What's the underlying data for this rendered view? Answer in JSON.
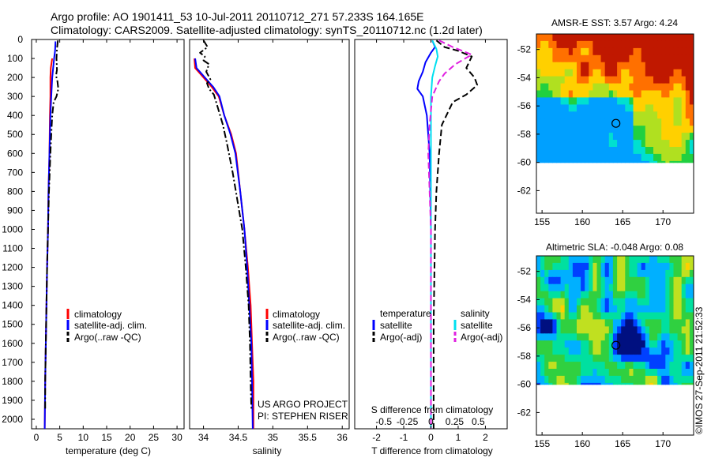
{
  "header": {
    "line1": "Argo profile: AO 1901411_53 10-Jul-2011 20110712_271 57.233S 164.165E",
    "line2": "Climatology: CARS2009. Satellite-adjusted climatology: synTS_20110712.nc (1.2d later)"
  },
  "credits": {
    "project": "US ARGO PROJECT",
    "pi": "PI: STEPHEN RISER",
    "stamp": "©IMOS 27-Sep-2011 21:52:33"
  },
  "colors": {
    "climatology": "#ff0000",
    "satellite": "#0000ff",
    "argo": "#000000",
    "sal_satellite": "#00e0f0",
    "sal_argo": "#e020e0"
  },
  "chart_data": [
    {
      "type": "line",
      "name": "temperature-profile",
      "xlabel": "temperature (deg C)",
      "ylabel": "",
      "xlim": [
        -1,
        31.5
      ],
      "ylim": [
        2050,
        0
      ],
      "xticks": [
        0,
        5,
        10,
        15,
        20,
        25,
        30
      ],
      "yticks": [
        0,
        100,
        200,
        300,
        400,
        500,
        600,
        700,
        800,
        900,
        1000,
        1100,
        1200,
        1300,
        1400,
        1500,
        1600,
        1700,
        1800,
        1900,
        2000
      ],
      "legend": {
        "position": "bottom-center",
        "labels": [
          "climatology",
          "satellite-adj. clim.",
          "Argo(..raw -QC)"
        ]
      },
      "series": [
        {
          "name": "climatology",
          "style": "solid",
          "color": "#ff0000",
          "points": [
            [
              3.4,
              100
            ],
            [
              3.1,
              150
            ],
            [
              3.0,
              200
            ],
            [
              3.0,
              300
            ],
            [
              2.9,
              400
            ],
            [
              2.8,
              600
            ],
            [
              2.6,
              800
            ],
            [
              2.5,
              1000
            ],
            [
              2.3,
              1200
            ],
            [
              2.1,
              1500
            ],
            [
              1.9,
              1800
            ],
            [
              1.8,
              2050
            ]
          ]
        },
        {
          "name": "satellite-adj. clim.",
          "style": "solid",
          "color": "#0000ff",
          "points": [
            [
              4.1,
              10
            ],
            [
              4.0,
              60
            ],
            [
              3.8,
              100
            ],
            [
              3.6,
              150
            ],
            [
              3.4,
              200
            ],
            [
              3.2,
              300
            ],
            [
              3.0,
              400
            ],
            [
              2.8,
              600
            ],
            [
              2.6,
              800
            ],
            [
              2.5,
              1000
            ],
            [
              2.3,
              1200
            ],
            [
              2.1,
              1500
            ],
            [
              1.9,
              1800
            ],
            [
              1.8,
              2050
            ]
          ]
        },
        {
          "name": "Argo(..raw -QC)",
          "style": "dashdot",
          "color": "#000000",
          "points": [
            [
              4.6,
              5
            ],
            [
              4.4,
              50
            ],
            [
              4.3,
              100
            ],
            [
              4.4,
              160
            ],
            [
              4.2,
              190
            ],
            [
              4.5,
              220
            ],
            [
              4.7,
              260
            ],
            [
              4.3,
              300
            ],
            [
              3.7,
              330
            ],
            [
              3.4,
              400
            ],
            [
              3.2,
              500
            ],
            [
              3.0,
              600
            ],
            [
              2.7,
              800
            ],
            [
              2.5,
              1000
            ],
            [
              2.3,
              1200
            ],
            [
              2.1,
              1500
            ],
            [
              1.9,
              1800
            ],
            [
              1.9,
              1950
            ]
          ]
        }
      ]
    },
    {
      "type": "line",
      "name": "salinity-profile",
      "xlabel": "salinity",
      "ylabel": "",
      "xlim": [
        33.8,
        36.1
      ],
      "ylim": [
        2050,
        0
      ],
      "xticks": [
        34,
        34.5,
        35,
        35.5,
        36
      ],
      "legend": {
        "position": "bottom-center",
        "labels": [
          "climatology",
          "satellite-adj. clim.",
          "Argo(..raw -QC)"
        ]
      },
      "series": [
        {
          "name": "climatology",
          "style": "solid",
          "color": "#ff0000",
          "points": [
            [
              33.87,
              100
            ],
            [
              33.88,
              150
            ],
            [
              34.0,
              200
            ],
            [
              34.12,
              250
            ],
            [
              34.22,
              300
            ],
            [
              34.3,
              400
            ],
            [
              34.4,
              500
            ],
            [
              34.47,
              600
            ],
            [
              34.53,
              800
            ],
            [
              34.59,
              1000
            ],
            [
              34.64,
              1200
            ],
            [
              34.68,
              1400
            ],
            [
              34.7,
              1600
            ],
            [
              34.72,
              1800
            ],
            [
              34.72,
              2050
            ]
          ]
        },
        {
          "name": "satellite-adj. clim.",
          "style": "solid",
          "color": "#0000ff",
          "points": [
            [
              33.88,
              100
            ],
            [
              33.9,
              150
            ],
            [
              34.02,
              200
            ],
            [
              34.14,
              250
            ],
            [
              34.23,
              300
            ],
            [
              34.3,
              400
            ],
            [
              34.39,
              500
            ],
            [
              34.46,
              600
            ],
            [
              34.53,
              800
            ],
            [
              34.59,
              1000
            ],
            [
              34.63,
              1200
            ],
            [
              34.66,
              1400
            ],
            [
              34.69,
              1600
            ],
            [
              34.7,
              1800
            ],
            [
              34.71,
              2050
            ]
          ]
        },
        {
          "name": "Argo(..raw -QC)",
          "style": "dashdot",
          "color": "#000000",
          "points": [
            [
              34.0,
              5
            ],
            [
              34.06,
              40
            ],
            [
              33.95,
              70
            ],
            [
              34.02,
              90
            ],
            [
              34.0,
              110
            ],
            [
              34.08,
              130
            ],
            [
              34.04,
              170
            ],
            [
              34.1,
              210
            ],
            [
              34.05,
              230
            ],
            [
              34.08,
              260
            ],
            [
              34.15,
              290
            ],
            [
              34.2,
              350
            ],
            [
              34.28,
              450
            ],
            [
              34.34,
              550
            ],
            [
              34.42,
              700
            ],
            [
              34.49,
              850
            ],
            [
              34.56,
              1000
            ],
            [
              34.61,
              1200
            ],
            [
              34.65,
              1400
            ],
            [
              34.67,
              1600
            ],
            [
              34.68,
              1800
            ],
            [
              34.69,
              1950
            ]
          ]
        }
      ]
    },
    {
      "type": "line",
      "name": "difference-from-climatology",
      "xlabel": "T difference from climatology",
      "xlabel2": "S difference from climatology",
      "xlim": [
        -2.8,
        2.8
      ],
      "ylim": [
        2050,
        0
      ],
      "xticks": [
        -2,
        -1,
        0,
        1,
        2
      ],
      "xticks_s": [
        -0.5,
        -0.25,
        0,
        0.25,
        0.5
      ],
      "legend": {
        "position": "bottom",
        "temperature_header": "temperature",
        "salinity_header": "salinity",
        "labels": [
          "satellite",
          "Argo(-adj)",
          "satellite",
          "Argo(-adj)"
        ]
      },
      "series": [
        {
          "name": "temperature satellite",
          "style": "solid",
          "color": "#0000ff",
          "points": [
            [
              0.05,
              5
            ],
            [
              0.15,
              40
            ],
            [
              0.0,
              70
            ],
            [
              -0.2,
              120
            ],
            [
              -0.3,
              170
            ],
            [
              -0.45,
              220
            ],
            [
              -0.5,
              260
            ],
            [
              -0.3,
              300
            ],
            [
              -0.15,
              400
            ],
            [
              -0.05,
              600
            ],
            [
              0.0,
              1000
            ],
            [
              0.0,
              2050
            ]
          ]
        },
        {
          "name": "temperature Argo(-adj)",
          "style": "dashed",
          "color": "#000000",
          "points": [
            [
              0.2,
              5
            ],
            [
              0.5,
              40
            ],
            [
              1.0,
              60
            ],
            [
              1.5,
              90
            ],
            [
              1.3,
              150
            ],
            [
              1.6,
              200
            ],
            [
              1.7,
              240
            ],
            [
              1.3,
              290
            ],
            [
              0.8,
              330
            ],
            [
              0.4,
              450
            ],
            [
              0.3,
              600
            ],
            [
              0.2,
              800
            ],
            [
              0.15,
              1000
            ],
            [
              0.1,
              1500
            ],
            [
              0.1,
              2050
            ]
          ]
        },
        {
          "name": "salinity satellite",
          "style": "solid",
          "color": "#00e0f0",
          "points": [
            [
              0.05,
              5
            ],
            [
              0.2,
              50
            ],
            [
              0.25,
              90
            ],
            [
              0.15,
              140
            ],
            [
              0.05,
              200
            ],
            [
              0.0,
              300
            ],
            [
              0.0,
              2050
            ]
          ]
        },
        {
          "name": "salinity Argo(-adj)",
          "style": "dashed",
          "color": "#e020e0",
          "points": [
            [
              0.3,
              5
            ],
            [
              0.8,
              40
            ],
            [
              1.5,
              80
            ],
            [
              0.9,
              130
            ],
            [
              0.5,
              180
            ],
            [
              0.3,
              220
            ],
            [
              0.05,
              300
            ],
            [
              -0.05,
              450
            ],
            [
              -0.1,
              600
            ],
            [
              -0.05,
              800
            ],
            [
              0.0,
              1000
            ],
            [
              0.0,
              2050
            ]
          ]
        }
      ]
    },
    {
      "type": "heatmap",
      "name": "sst-map",
      "title": "AMSR-E SST: 3.57  Argo: 4.24",
      "xlim": [
        154.3,
        173.8
      ],
      "ylim": [
        -63.6,
        -50.9
      ],
      "xticks": [
        155,
        160,
        165,
        170
      ],
      "yticks": [
        -52,
        -54,
        -56,
        -58,
        -60,
        -62
      ],
      "data_extent_lat": [
        -60,
        -50.9
      ],
      "argo_position": [
        164.165,
        -57.233
      ],
      "colorscale": [
        "#00a0ff",
        "#00e0d0",
        "#20d040",
        "#b0e020",
        "#ffd000",
        "#ff7000",
        "#c01800"
      ]
    },
    {
      "type": "heatmap",
      "name": "sla-map",
      "title": "Altimetric SLA: -0.048  Argo: 0.08",
      "xlim": [
        154.3,
        173.8
      ],
      "ylim": [
        -63.6,
        -50.9
      ],
      "xticks": [
        155,
        160,
        165,
        170
      ],
      "yticks": [
        -52,
        -54,
        -56,
        -58,
        -60,
        -62
      ],
      "data_extent_lat": [
        -60,
        -50.9
      ],
      "argo_position": [
        164.165,
        -57.233
      ],
      "colorscale": [
        "#001080",
        "#0040ff",
        "#00b0ff",
        "#00e0a0",
        "#30d040",
        "#c0e020",
        "#ffd000"
      ]
    }
  ]
}
